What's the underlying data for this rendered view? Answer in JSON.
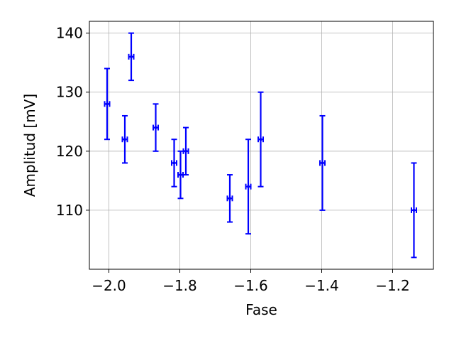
{
  "chart_data": {
    "type": "scatter",
    "title": "",
    "xlabel": "Fase",
    "ylabel": "Amplitud [mV]",
    "xlim": [
      -2.055,
      -1.085
    ],
    "ylim": [
      100,
      142
    ],
    "grid": true,
    "x_ticks": [
      -2.0,
      -1.8,
      -1.6,
      -1.4,
      -1.2
    ],
    "x_tick_labels": [
      "−2.0",
      "−1.8",
      "−1.6",
      "−1.4",
      "−1.2"
    ],
    "y_ticks": [
      110,
      120,
      130,
      140
    ],
    "y_tick_labels": [
      "110",
      "120",
      "130",
      "140"
    ],
    "series": [
      {
        "color": "#0000ff",
        "marker": "point with errorbars",
        "points": [
          {
            "x": -2.005,
            "y": 128,
            "y_err": 6,
            "x_err": 0.007
          },
          {
            "x": -1.955,
            "y": 122,
            "y_err": 4,
            "x_err": 0.007
          },
          {
            "x": -1.937,
            "y": 136,
            "y_err": 4,
            "x_err": 0.007
          },
          {
            "x": -1.868,
            "y": 124,
            "y_err": 4,
            "x_err": 0.007
          },
          {
            "x": -1.816,
            "y": 118,
            "y_err": 4,
            "x_err": 0.007
          },
          {
            "x": -1.798,
            "y": 116,
            "y_err": 4,
            "x_err": 0.007
          },
          {
            "x": -1.783,
            "y": 120,
            "y_err": 4,
            "x_err": 0.007
          },
          {
            "x": -1.659,
            "y": 112,
            "y_err": 4,
            "x_err": 0.007
          },
          {
            "x": -1.607,
            "y": 114,
            "y_err": 8,
            "x_err": 0.007
          },
          {
            "x": -1.572,
            "y": 122,
            "y_err": 8,
            "x_err": 0.007
          },
          {
            "x": -1.398,
            "y": 118,
            "y_err": 8,
            "x_err": 0.007
          },
          {
            "x": -1.14,
            "y": 110,
            "y_err": 8,
            "x_err": 0.007
          }
        ]
      }
    ]
  }
}
